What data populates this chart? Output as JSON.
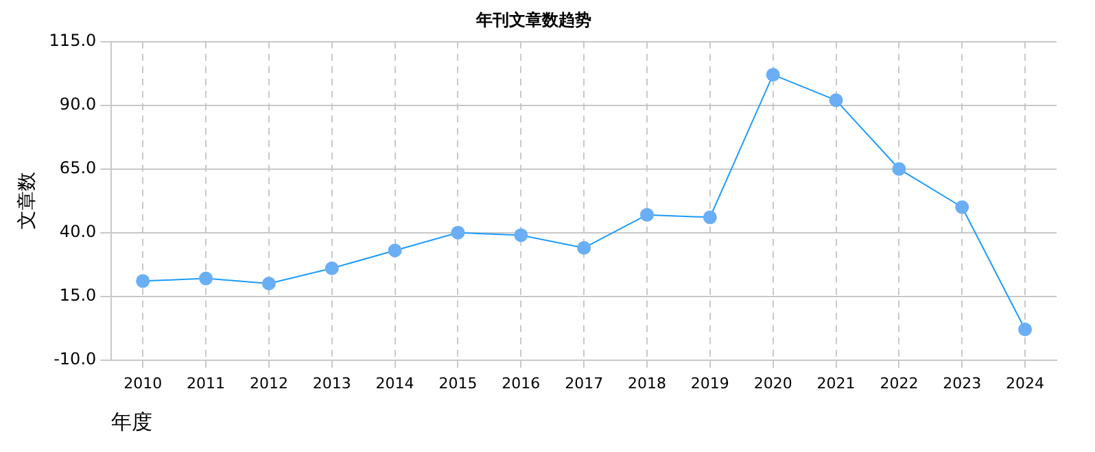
{
  "chart_data": {
    "type": "line",
    "title": "年刊文章数趋势",
    "xlabel": "年度",
    "ylabel": "文章数",
    "categories": [
      "2010",
      "2011",
      "2012",
      "2013",
      "2014",
      "2015",
      "2016",
      "2017",
      "2018",
      "2019",
      "2020",
      "2021",
      "2022",
      "2023",
      "2024"
    ],
    "series": [
      {
        "color": "#1a9bff",
        "values": [
          21,
          22,
          20,
          26,
          33,
          40,
          39,
          34,
          47,
          46,
          102,
          92,
          65,
          50,
          2
        ]
      }
    ],
    "ylim": [
      -10,
      115
    ],
    "yticks": [
      {
        "value": -10,
        "label": "-10.0"
      },
      {
        "value": 15,
        "label": "15.0"
      },
      {
        "value": 40,
        "label": "40.0"
      },
      {
        "value": 65,
        "label": "65.0"
      },
      {
        "value": 90,
        "label": "90.0"
      },
      {
        "value": 115,
        "label": "115.0"
      }
    ],
    "grid": true,
    "legend": false,
    "marker": "circle",
    "line_style": "solid"
  }
}
